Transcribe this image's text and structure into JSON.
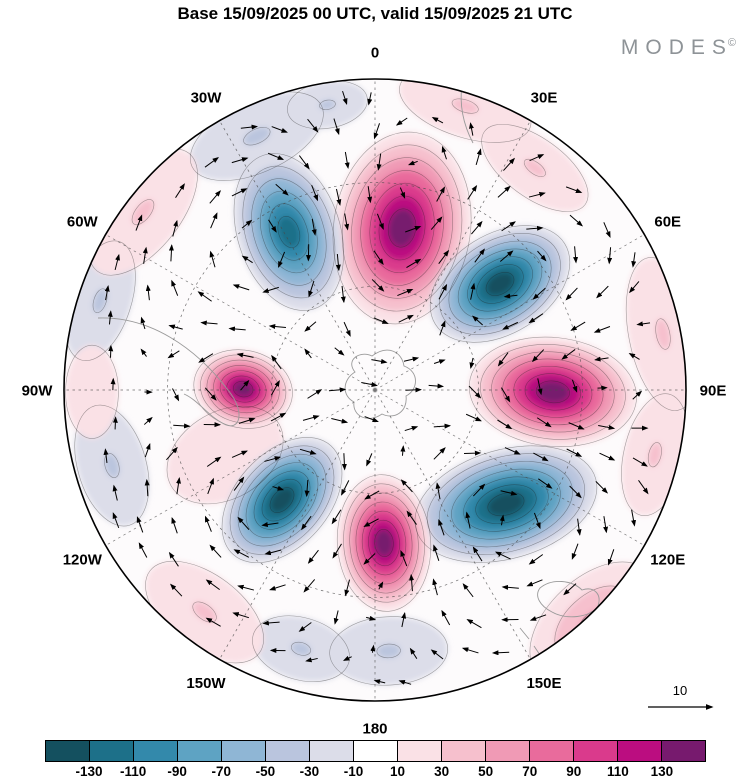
{
  "header": {
    "title": "Base 15/09/2025 00 UTC, valid 15/09/2025 21 UTC",
    "logo": "MODES",
    "logo_mark": "©"
  },
  "chart_data": {
    "type": "heatmap",
    "projection": "south-polar-stereographic",
    "title": "Base 15/09/2025 00 UTC, valid 15/09/2025 21 UTC",
    "meridian_labels": [
      {
        "label": "0",
        "angle": 0
      },
      {
        "label": "30E",
        "angle": 30
      },
      {
        "label": "60E",
        "angle": 60
      },
      {
        "label": "90E",
        "angle": 90
      },
      {
        "label": "120E",
        "angle": 120
      },
      {
        "label": "150E",
        "angle": 150
      },
      {
        "label": "180",
        "angle": 180
      },
      {
        "label": "150W",
        "angle": 210
      },
      {
        "label": "120W",
        "angle": 240
      },
      {
        "label": "90W",
        "angle": 270
      },
      {
        "label": "60W",
        "angle": 300
      },
      {
        "label": "30W",
        "angle": 330
      }
    ],
    "colorbar": {
      "tick_labels": [
        "-130",
        "-110",
        "-90",
        "-70",
        "-50",
        "-30",
        "-10",
        "10",
        "30",
        "50",
        "70",
        "90",
        "110",
        "130"
      ],
      "colors": [
        "#14505f",
        "#1d7089",
        "#3389ab",
        "#5ea3c3",
        "#8fb6d5",
        "#bac5de",
        "#dcdde9",
        "#ffffff",
        "#fae1e6",
        "#f6c0cd",
        "#f09ab5",
        "#e96b9c",
        "#da3a8c",
        "#bb0d80",
        "#771a6e"
      ]
    },
    "reference_vector": {
      "label": "10"
    },
    "grid": {
      "latitude_circle_fractions": [
        0.333,
        0.667
      ],
      "meridian_step_deg": 30
    },
    "anomaly_centers": [
      {
        "name": "positive-north",
        "nx": 0.087,
        "ny": -0.521,
        "rx": 0.22,
        "ry": 0.31,
        "rot": 8,
        "peak": 140
      },
      {
        "name": "negative-north-northwest",
        "nx": -0.277,
        "ny": -0.508,
        "rx": 0.165,
        "ry": 0.26,
        "rot": -18,
        "peak": -125
      },
      {
        "name": "negative-northeast",
        "nx": 0.402,
        "ny": -0.341,
        "rx": 0.245,
        "ry": 0.16,
        "rot": -32,
        "peak": -140
      },
      {
        "name": "positive-east",
        "nx": 0.572,
        "ny": 0.006,
        "rx": 0.27,
        "ry": 0.175,
        "rot": 6,
        "peak": 140
      },
      {
        "name": "positive-west",
        "nx": -0.424,
        "ny": -0.003,
        "rx": 0.16,
        "ry": 0.125,
        "rot": 12,
        "peak": 138
      },
      {
        "name": "negative-southwest",
        "nx": -0.299,
        "ny": 0.354,
        "rx": 0.235,
        "ry": 0.15,
        "rot": -48,
        "peak": -135
      },
      {
        "name": "negative-southeast",
        "nx": 0.421,
        "ny": 0.367,
        "rx": 0.3,
        "ry": 0.175,
        "rot": -16,
        "peak": -140
      },
      {
        "name": "positive-south",
        "nx": 0.029,
        "ny": 0.492,
        "rx": 0.15,
        "ry": 0.22,
        "rot": -4,
        "peak": 135
      }
    ],
    "peripheral_patches": [
      {
        "name": "lavender-rim-nnw",
        "nx": -0.38,
        "ny": -0.816,
        "rx": 0.23,
        "ry": 0.115,
        "rot": -25,
        "peak": -35
      },
      {
        "name": "lavender-rim-n",
        "nx": -0.153,
        "ny": -0.917,
        "rx": 0.13,
        "ry": 0.075,
        "rot": -10,
        "peak": -30
      },
      {
        "name": "lavender-rim-wnw",
        "nx": -0.884,
        "ny": -0.287,
        "rx": 0.2,
        "ry": 0.1,
        "rot": -72,
        "peak": -30
      },
      {
        "name": "lavender-rim-wsw",
        "nx": -0.846,
        "ny": 0.243,
        "rx": 0.2,
        "ry": 0.11,
        "rot": 74,
        "peak": -30
      },
      {
        "name": "lavender-rim-s",
        "nx": 0.044,
        "ny": 0.839,
        "rx": 0.19,
        "ry": 0.11,
        "rot": -3,
        "peak": -40
      },
      {
        "name": "lavender-rim-ssw",
        "nx": -0.238,
        "ny": 0.832,
        "rx": 0.16,
        "ry": 0.1,
        "rot": 16,
        "peak": -30
      },
      {
        "name": "pink-rim-nne",
        "nx": 0.29,
        "ny": -0.913,
        "rx": 0.22,
        "ry": 0.1,
        "rot": 18,
        "peak": 45
      },
      {
        "name": "pink-rim-nw",
        "nx": -0.746,
        "ny": -0.572,
        "rx": 0.24,
        "ry": 0.12,
        "rot": -52,
        "peak": 35
      },
      {
        "name": "pink-rim-ene",
        "nx": 0.926,
        "ny": -0.18,
        "rx": 0.25,
        "ry": 0.11,
        "rot": 79,
        "peak": 45
      },
      {
        "name": "pink-rim-ese",
        "nx": 0.9,
        "ny": 0.208,
        "rx": 0.2,
        "ry": 0.1,
        "rot": -77,
        "peak": 35
      },
      {
        "name": "pink-rim-se",
        "nx": 0.698,
        "ny": 0.746,
        "rx": 0.24,
        "ry": 0.14,
        "rot": -43,
        "peak": 55
      },
      {
        "name": "pink-rim-sw",
        "nx": -0.548,
        "ny": 0.714,
        "rx": 0.22,
        "ry": 0.12,
        "rot": 37,
        "peak": 35
      },
      {
        "name": "pink-rim-w",
        "nx": -0.91,
        "ny": 0.006,
        "rx": 0.15,
        "ry": 0.085,
        "rot": 90,
        "peak": 25
      },
      {
        "name": "pink-inner-sw",
        "nx": -0.482,
        "ny": 0.209,
        "rx": 0.2,
        "ry": 0.14,
        "rot": -30,
        "peak": 25
      },
      {
        "name": "pink-inner-ne",
        "nx": 0.514,
        "ny": -0.714,
        "rx": 0.2,
        "ry": 0.095,
        "rot": 36,
        "peak": 35
      }
    ]
  }
}
